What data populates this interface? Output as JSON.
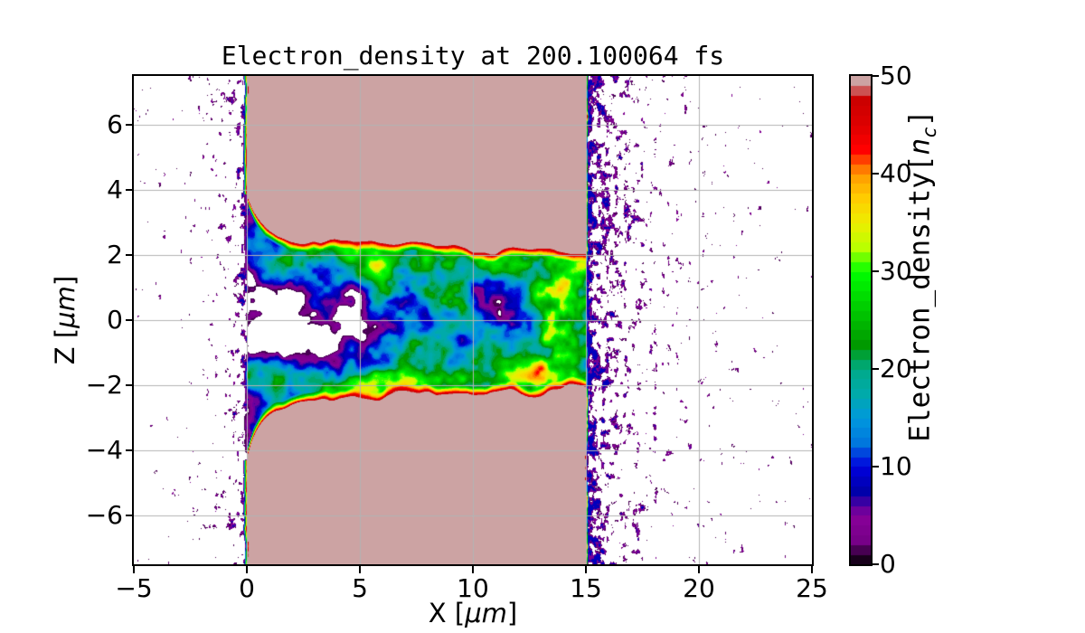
{
  "figure": {
    "background": "#ffffff",
    "text_color": "#000000"
  },
  "chart_data": {
    "type": "heatmap",
    "title": "Electron_density at 200.100064 fs",
    "xlabel": "X [μm]",
    "ylabel": "Z [μm]",
    "xlabel_parts": {
      "pre": "X [",
      "unit": "μm",
      "post": "]"
    },
    "ylabel_parts": {
      "pre": "Z [",
      "unit": "μm",
      "post": "]"
    },
    "xlim": [
      -5,
      25
    ],
    "ylim": [
      -7.5,
      7.5
    ],
    "xticks": {
      "values": [
        -5,
        0,
        5,
        10,
        15,
        20,
        25
      ],
      "labels": [
        "−5",
        "0",
        "5",
        "10",
        "15",
        "20",
        "25"
      ]
    },
    "yticks": {
      "values": [
        -6,
        -4,
        -2,
        0,
        2,
        4,
        6
      ],
      "labels": [
        "−6",
        "−4",
        "−2",
        "0",
        "2",
        "4",
        "6"
      ]
    },
    "grid": {
      "show": true,
      "color": "#b3b3b3",
      "x_values": [
        0,
        5,
        10,
        15,
        20
      ],
      "y_values": [
        -6,
        -4,
        -2,
        0,
        2,
        4,
        6
      ]
    },
    "colorbar": {
      "label": "Electron_density[n_c]",
      "label_parts": {
        "pre": "Electron_density[",
        "var": "n",
        "sub": "c",
        "post": "]"
      },
      "ticks": {
        "values": [
          0,
          10,
          20,
          30,
          40,
          50
        ],
        "labels": [
          "0",
          "10",
          "20",
          "30",
          "40",
          "50"
        ]
      },
      "vmin": 0,
      "vmax": 50,
      "n_bands": 50,
      "white_below": 1.0
    },
    "colormap": {
      "name": "nipy_spectral",
      "stops": [
        [
          0.0,
          0,
          0,
          0
        ],
        [
          0.05,
          119,
          0,
          136
        ],
        [
          0.1,
          136,
          0,
          153
        ],
        [
          0.15,
          0,
          0,
          170
        ],
        [
          0.2,
          0,
          0,
          221
        ],
        [
          0.25,
          0,
          119,
          221
        ],
        [
          0.3,
          0,
          153,
          221
        ],
        [
          0.35,
          0,
          170,
          170
        ],
        [
          0.4,
          0,
          170,
          136
        ],
        [
          0.45,
          0,
          153,
          0
        ],
        [
          0.5,
          0,
          187,
          0
        ],
        [
          0.55,
          0,
          221,
          0
        ],
        [
          0.6,
          0,
          255,
          0
        ],
        [
          0.65,
          187,
          255,
          0
        ],
        [
          0.7,
          238,
          238,
          0
        ],
        [
          0.75,
          255,
          204,
          0
        ],
        [
          0.8,
          255,
          153,
          0
        ],
        [
          0.85,
          255,
          0,
          0
        ],
        [
          0.9,
          221,
          0,
          0
        ],
        [
          0.95,
          204,
          0,
          0
        ],
        [
          1.0,
          204,
          204,
          204
        ]
      ]
    },
    "field": {
      "slab": {
        "x_min": 0,
        "x_max": 15,
        "density": 55
      },
      "channel": {
        "top_base": 2.52,
        "top_flare": 1.15,
        "top_flare_scale": 0.62,
        "bot_base": 2.52,
        "bot_flare": 1.6,
        "bot_flare_scale": 0.58,
        "taper": 0.02,
        "wobble": 0.3,
        "edge_width": 0.32,
        "interior_mean": 16,
        "interior_amp": 34,
        "clamp_max": 47.2
      },
      "ridge": {
        "z": 2.0,
        "sigma": 0.8,
        "strength": 10
      },
      "mouth": {
        "decay": 1.3,
        "strength": 14
      },
      "holes": [
        {
          "x": 3.8,
          "z": -0.5,
          "sx": 2.9,
          "sz": 1.3,
          "s": 17
        },
        {
          "x": 1.6,
          "z": 0.2,
          "sx": 1.2,
          "sz": 1.2,
          "s": 14
        },
        {
          "x": 10.8,
          "z": 0.9,
          "sx": 2.0,
          "sz": 1.0,
          "s": 7
        }
      ],
      "spots": [
        {
          "x": 13.6,
          "z": 0.0,
          "sx": 1.25,
          "sz": 1.7,
          "s": 15
        },
        {
          "x": 5.3,
          "z": -2.05,
          "sx": 1.4,
          "sz": 0.45,
          "s": 9
        },
        {
          "x": 7.8,
          "z": -2.0,
          "sx": 1.1,
          "sz": 0.5,
          "s": 7
        }
      ],
      "face_ramp_left": 0.18,
      "face_ramp_right": 0.1,
      "face_wobble": 0.07,
      "speckle_left": {
        "amp": 0.3,
        "decay": 1.9,
        "floor": 0.04,
        "edge_amp": 0.25,
        "edge_decay": 0.28
      },
      "speckle_right": {
        "amp": 0.5,
        "decay": 3.0,
        "floor": 0.05,
        "edge_amp": 0.33,
        "edge_decay": 0.45
      },
      "speckle_scale": 5.2,
      "speckle_gain": 38,
      "speckle_vmax": 8.5
    }
  }
}
